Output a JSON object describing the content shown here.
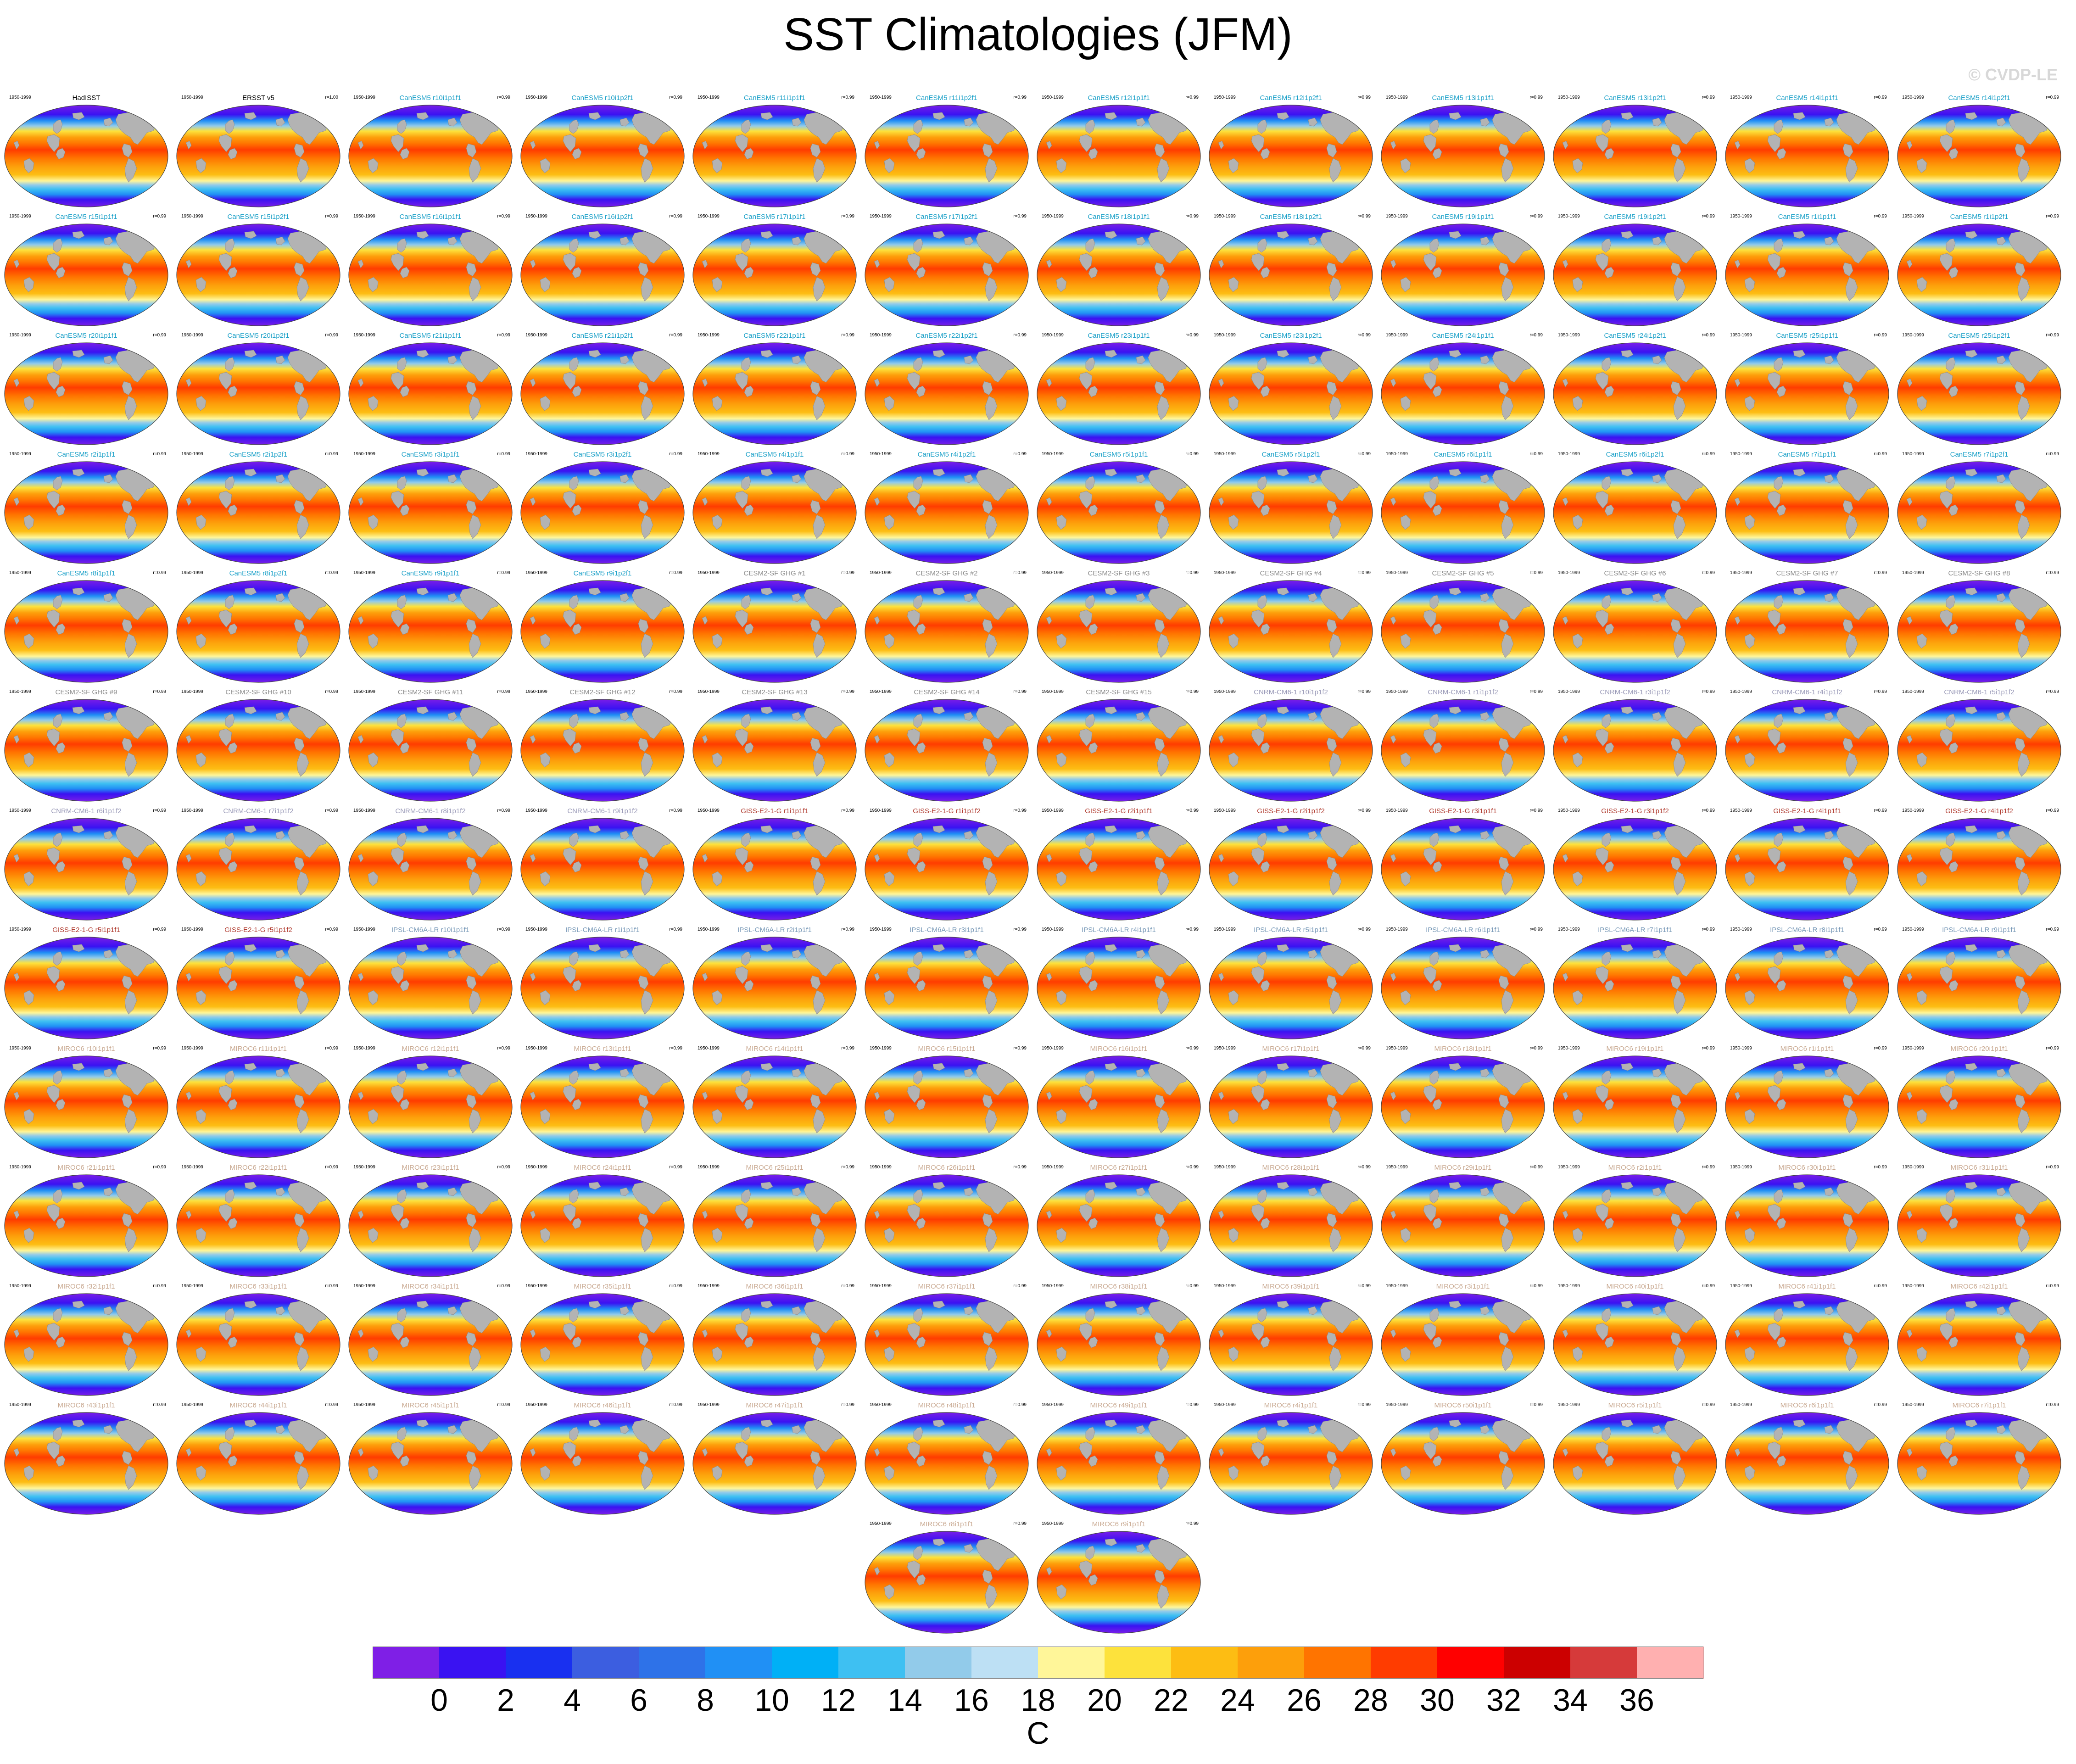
{
  "title": "SST Climatologies (JFM)",
  "copyright": "© CVDP-LE",
  "period_label": "1950-1999",
  "units": "C",
  "chart_data": {
    "type": "heatmap",
    "projection": "global map panels",
    "title": "SST Climatologies (JFM)",
    "panels": [
      {
        "title": "HadISST",
        "r": "",
        "group": "obs"
      },
      {
        "title": "ERSST v5",
        "r": "r=1.00",
        "group": "obs"
      },
      {
        "title": "CanESM5 r10i1p1f1",
        "r": "r=0.99",
        "group": "CanESM5"
      },
      {
        "title": "CanESM5 r10i1p2f1",
        "r": "r=0.99",
        "group": "CanESM5"
      },
      {
        "title": "CanESM5 r11i1p1f1",
        "r": "r=0.99",
        "group": "CanESM5"
      },
      {
        "title": "CanESM5 r11i1p2f1",
        "r": "r=0.99",
        "group": "CanESM5"
      },
      {
        "title": "CanESM5 r12i1p1f1",
        "r": "r=0.99",
        "group": "CanESM5"
      },
      {
        "title": "CanESM5 r12i1p2f1",
        "r": "r=0.99",
        "group": "CanESM5"
      },
      {
        "title": "CanESM5 r13i1p1f1",
        "r": "r=0.99",
        "group": "CanESM5"
      },
      {
        "title": "CanESM5 r13i1p2f1",
        "r": "r=0.99",
        "group": "CanESM5"
      },
      {
        "title": "CanESM5 r14i1p1f1",
        "r": "r=0.99",
        "group": "CanESM5"
      },
      {
        "title": "CanESM5 r14i1p2f1",
        "r": "r=0.99",
        "group": "CanESM5"
      },
      {
        "title": "CanESM5 r15i1p1f1",
        "r": "r=0.99",
        "group": "CanESM5"
      },
      {
        "title": "CanESM5 r15i1p2f1",
        "r": "r=0.99",
        "group": "CanESM5"
      },
      {
        "title": "CanESM5 r16i1p1f1",
        "r": "r=0.99",
        "group": "CanESM5"
      },
      {
        "title": "CanESM5 r16i1p2f1",
        "r": "r=0.99",
        "group": "CanESM5"
      },
      {
        "title": "CanESM5 r17i1p1f1",
        "r": "r=0.99",
        "group": "CanESM5"
      },
      {
        "title": "CanESM5 r17i1p2f1",
        "r": "r=0.99",
        "group": "CanESM5"
      },
      {
        "title": "CanESM5 r18i1p1f1",
        "r": "r=0.99",
        "group": "CanESM5"
      },
      {
        "title": "CanESM5 r18i1p2f1",
        "r": "r=0.99",
        "group": "CanESM5"
      },
      {
        "title": "CanESM5 r19i1p1f1",
        "r": "r=0.99",
        "group": "CanESM5"
      },
      {
        "title": "CanESM5 r19i1p2f1",
        "r": "r=0.99",
        "group": "CanESM5"
      },
      {
        "title": "CanESM5 r1i1p1f1",
        "r": "r=0.99",
        "group": "CanESM5"
      },
      {
        "title": "CanESM5 r1i1p2f1",
        "r": "r=0.99",
        "group": "CanESM5"
      },
      {
        "title": "CanESM5 r20i1p1f1",
        "r": "r=0.99",
        "group": "CanESM5"
      },
      {
        "title": "CanESM5 r20i1p2f1",
        "r": "r=0.99",
        "group": "CanESM5"
      },
      {
        "title": "CanESM5 r21i1p1f1",
        "r": "r=0.99",
        "group": "CanESM5"
      },
      {
        "title": "CanESM5 r21i1p2f1",
        "r": "r=0.99",
        "group": "CanESM5"
      },
      {
        "title": "CanESM5 r22i1p1f1",
        "r": "r=0.99",
        "group": "CanESM5"
      },
      {
        "title": "CanESM5 r22i1p2f1",
        "r": "r=0.99",
        "group": "CanESM5"
      },
      {
        "title": "CanESM5 r23i1p1f1",
        "r": "r=0.99",
        "group": "CanESM5"
      },
      {
        "title": "CanESM5 r23i1p2f1",
        "r": "r=0.99",
        "group": "CanESM5"
      },
      {
        "title": "CanESM5 r24i1p1f1",
        "r": "r=0.99",
        "group": "CanESM5"
      },
      {
        "title": "CanESM5 r24i1p2f1",
        "r": "r=0.99",
        "group": "CanESM5"
      },
      {
        "title": "CanESM5 r25i1p1f1",
        "r": "r=0.99",
        "group": "CanESM5"
      },
      {
        "title": "CanESM5 r25i1p2f1",
        "r": "r=0.99",
        "group": "CanESM5"
      },
      {
        "title": "CanESM5 r2i1p1f1",
        "r": "r=0.99",
        "group": "CanESM5"
      },
      {
        "title": "CanESM5 r2i1p2f1",
        "r": "r=0.99",
        "group": "CanESM5"
      },
      {
        "title": "CanESM5 r3i1p1f1",
        "r": "r=0.99",
        "group": "CanESM5"
      },
      {
        "title": "CanESM5 r3i1p2f1",
        "r": "r=0.99",
        "group": "CanESM5"
      },
      {
        "title": "CanESM5 r4i1p1f1",
        "r": "r=0.99",
        "group": "CanESM5"
      },
      {
        "title": "CanESM5 r4i1p2f1",
        "r": "r=0.99",
        "group": "CanESM5"
      },
      {
        "title": "CanESM5 r5i1p1f1",
        "r": "r=0.99",
        "group": "CanESM5"
      },
      {
        "title": "CanESM5 r5i1p2f1",
        "r": "r=0.99",
        "group": "CanESM5"
      },
      {
        "title": "CanESM5 r6i1p1f1",
        "r": "r=0.99",
        "group": "CanESM5"
      },
      {
        "title": "CanESM5 r6i1p2f1",
        "r": "r=0.99",
        "group": "CanESM5"
      },
      {
        "title": "CanESM5 r7i1p1f1",
        "r": "r=0.99",
        "group": "CanESM5"
      },
      {
        "title": "CanESM5 r7i1p2f1",
        "r": "r=0.99",
        "group": "CanESM5"
      },
      {
        "title": "CanESM5 r8i1p1f1",
        "r": "r=0.99",
        "group": "CanESM5"
      },
      {
        "title": "CanESM5 r8i1p2f1",
        "r": "r=0.99",
        "group": "CanESM5"
      },
      {
        "title": "CanESM5 r9i1p1f1",
        "r": "r=0.99",
        "group": "CanESM5"
      },
      {
        "title": "CanESM5 r9i1p2f1",
        "r": "r=0.99",
        "group": "CanESM5"
      },
      {
        "title": "CESM2-SF GHG #1",
        "r": "r=0.99",
        "group": "CESM2"
      },
      {
        "title": "CESM2-SF GHG #2",
        "r": "r=0.99",
        "group": "CESM2"
      },
      {
        "title": "CESM2-SF GHG #3",
        "r": "r=0.99",
        "group": "CESM2"
      },
      {
        "title": "CESM2-SF GHG #4",
        "r": "r=0.99",
        "group": "CESM2"
      },
      {
        "title": "CESM2-SF GHG #5",
        "r": "r=0.99",
        "group": "CESM2"
      },
      {
        "title": "CESM2-SF GHG #6",
        "r": "r=0.99",
        "group": "CESM2"
      },
      {
        "title": "CESM2-SF GHG #7",
        "r": "r=0.99",
        "group": "CESM2"
      },
      {
        "title": "CESM2-SF GHG #8",
        "r": "r=0.99",
        "group": "CESM2"
      },
      {
        "title": "CESM2-SF GHG #9",
        "r": "r=0.99",
        "group": "CESM2"
      },
      {
        "title": "CESM2-SF GHG #10",
        "r": "r=0.99",
        "group": "CESM2"
      },
      {
        "title": "CESM2-SF GHG #11",
        "r": "r=0.99",
        "group": "CESM2"
      },
      {
        "title": "CESM2-SF GHG #12",
        "r": "r=0.99",
        "group": "CESM2"
      },
      {
        "title": "CESM2-SF GHG #13",
        "r": "r=0.99",
        "group": "CESM2"
      },
      {
        "title": "CESM2-SF GHG #14",
        "r": "r=0.99",
        "group": "CESM2"
      },
      {
        "title": "CESM2-SF GHG #15",
        "r": "r=0.99",
        "group": "CESM2"
      },
      {
        "title": "CNRM-CM6-1 r10i1p1f2",
        "r": "r=0.99",
        "group": "CNRM"
      },
      {
        "title": "CNRM-CM6-1 r1i1p1f2",
        "r": "r=0.99",
        "group": "CNRM"
      },
      {
        "title": "CNRM-CM6-1 r3i1p1f2",
        "r": "r=0.99",
        "group": "CNRM"
      },
      {
        "title": "CNRM-CM6-1 r4i1p1f2",
        "r": "r=0.99",
        "group": "CNRM"
      },
      {
        "title": "CNRM-CM6-1 r5i1p1f2",
        "r": "r=0.99",
        "group": "CNRM"
      },
      {
        "title": "CNRM-CM6-1 r6i1p1f2",
        "r": "r=0.99",
        "group": "CNRM"
      },
      {
        "title": "CNRM-CM6-1 r7i1p1f2",
        "r": "r=0.99",
        "group": "CNRM"
      },
      {
        "title": "CNRM-CM6-1 r8i1p1f2",
        "r": "r=0.99",
        "group": "CNRM"
      },
      {
        "title": "CNRM-CM6-1 r9i1p1f2",
        "r": "r=0.99",
        "group": "CNRM"
      },
      {
        "title": "GISS-E2-1-G r1i1p1f1",
        "r": "r=0.99",
        "group": "GISS"
      },
      {
        "title": "GISS-E2-1-G r1i1p1f2",
        "r": "r=0.99",
        "group": "GISS"
      },
      {
        "title": "GISS-E2-1-G r2i1p1f1",
        "r": "r=0.99",
        "group": "GISS"
      },
      {
        "title": "GISS-E2-1-G r2i1p1f2",
        "r": "r=0.99",
        "group": "GISS"
      },
      {
        "title": "GISS-E2-1-G r3i1p1f1",
        "r": "r=0.99",
        "group": "GISS"
      },
      {
        "title": "GISS-E2-1-G r3i1p1f2",
        "r": "r=0.99",
        "group": "GISS"
      },
      {
        "title": "GISS-E2-1-G r4i1p1f1",
        "r": "r=0.99",
        "group": "GISS"
      },
      {
        "title": "GISS-E2-1-G r4i1p1f2",
        "r": "r=0.99",
        "group": "GISS"
      },
      {
        "title": "GISS-E2-1-G r5i1p1f1",
        "r": "r=0.99",
        "group": "GISS"
      },
      {
        "title": "GISS-E2-1-G r5i1p1f2",
        "r": "r=0.99",
        "group": "GISS"
      },
      {
        "title": "IPSL-CM6A-LR r10i1p1f1",
        "r": "r=0.99",
        "group": "IPSL"
      },
      {
        "title": "IPSL-CM6A-LR r1i1p1f1",
        "r": "r=0.99",
        "group": "IPSL"
      },
      {
        "title": "IPSL-CM6A-LR r2i1p1f1",
        "r": "r=0.99",
        "group": "IPSL"
      },
      {
        "title": "IPSL-CM6A-LR r3i1p1f1",
        "r": "r=0.99",
        "group": "IPSL"
      },
      {
        "title": "IPSL-CM6A-LR r4i1p1f1",
        "r": "r=0.99",
        "group": "IPSL"
      },
      {
        "title": "IPSL-CM6A-LR r5i1p1f1",
        "r": "r=0.99",
        "group": "IPSL"
      },
      {
        "title": "IPSL-CM6A-LR r6i1p1f1",
        "r": "r=0.99",
        "group": "IPSL"
      },
      {
        "title": "IPSL-CM6A-LR r7i1p1f1",
        "r": "r=0.99",
        "group": "IPSL"
      },
      {
        "title": "IPSL-CM6A-LR r8i1p1f1",
        "r": "r=0.99",
        "group": "IPSL"
      },
      {
        "title": "IPSL-CM6A-LR r9i1p1f1",
        "r": "r=0.99",
        "group": "IPSL"
      },
      {
        "title": "MIROC6 r10i1p1f1",
        "r": "r=0.99",
        "group": "MIROC6"
      },
      {
        "title": "MIROC6 r11i1p1f1",
        "r": "r=0.99",
        "group": "MIROC6"
      },
      {
        "title": "MIROC6 r12i1p1f1",
        "r": "r=0.99",
        "group": "MIROC6"
      },
      {
        "title": "MIROC6 r13i1p1f1",
        "r": "r=0.99",
        "group": "MIROC6"
      },
      {
        "title": "MIROC6 r14i1p1f1",
        "r": "r=0.99",
        "group": "MIROC6"
      },
      {
        "title": "MIROC6 r15i1p1f1",
        "r": "r=0.99",
        "group": "MIROC6"
      },
      {
        "title": "MIROC6 r16i1p1f1",
        "r": "r=0.99",
        "group": "MIROC6"
      },
      {
        "title": "MIROC6 r17i1p1f1",
        "r": "r=0.99",
        "group": "MIROC6"
      },
      {
        "title": "MIROC6 r18i1p1f1",
        "r": "r=0.99",
        "group": "MIROC6"
      },
      {
        "title": "MIROC6 r19i1p1f1",
        "r": "r=0.99",
        "group": "MIROC6"
      },
      {
        "title": "MIROC6 r1i1p1f1",
        "r": "r=0.99",
        "group": "MIROC6"
      },
      {
        "title": "MIROC6 r20i1p1f1",
        "r": "r=0.99",
        "group": "MIROC6"
      },
      {
        "title": "MIROC6 r21i1p1f1",
        "r": "r=0.99",
        "group": "MIROC6"
      },
      {
        "title": "MIROC6 r22i1p1f1",
        "r": "r=0.99",
        "group": "MIROC6"
      },
      {
        "title": "MIROC6 r23i1p1f1",
        "r": "r=0.99",
        "group": "MIROC6"
      },
      {
        "title": "MIROC6 r24i1p1f1",
        "r": "r=0.99",
        "group": "MIROC6"
      },
      {
        "title": "MIROC6 r25i1p1f1",
        "r": "r=0.99",
        "group": "MIROC6"
      },
      {
        "title": "MIROC6 r26i1p1f1",
        "r": "r=0.99",
        "group": "MIROC6"
      },
      {
        "title": "MIROC6 r27i1p1f1",
        "r": "r=0.99",
        "group": "MIROC6"
      },
      {
        "title": "MIROC6 r28i1p1f1",
        "r": "r=0.99",
        "group": "MIROC6"
      },
      {
        "title": "MIROC6 r29i1p1f1",
        "r": "r=0.99",
        "group": "MIROC6"
      },
      {
        "title": "MIROC6 r2i1p1f1",
        "r": "r=0.99",
        "group": "MIROC6"
      },
      {
        "title": "MIROC6 r30i1p1f1",
        "r": "r=0.99",
        "group": "MIROC6"
      },
      {
        "title": "MIROC6 r31i1p1f1",
        "r": "r=0.99",
        "group": "MIROC6"
      },
      {
        "title": "MIROC6 r32i1p1f1",
        "r": "r=0.99",
        "group": "MIROC6"
      },
      {
        "title": "MIROC6 r33i1p1f1",
        "r": "r=0.99",
        "group": "MIROC6"
      },
      {
        "title": "MIROC6 r34i1p1f1",
        "r": "r=0.99",
        "group": "MIROC6"
      },
      {
        "title": "MIROC6 r35i1p1f1",
        "r": "r=0.99",
        "group": "MIROC6"
      },
      {
        "title": "MIROC6 r36i1p1f1",
        "r": "r=0.99",
        "group": "MIROC6"
      },
      {
        "title": "MIROC6 r37i1p1f1",
        "r": "r=0.99",
        "group": "MIROC6"
      },
      {
        "title": "MIROC6 r38i1p1f1",
        "r": "r=0.99",
        "group": "MIROC6"
      },
      {
        "title": "MIROC6 r39i1p1f1",
        "r": "r=0.99",
        "group": "MIROC6"
      },
      {
        "title": "MIROC6 r3i1p1f1",
        "r": "r=0.99",
        "group": "MIROC6"
      },
      {
        "title": "MIROC6 r40i1p1f1",
        "r": "r=0.99",
        "group": "MIROC6"
      },
      {
        "title": "MIROC6 r41i1p1f1",
        "r": "r=0.99",
        "group": "MIROC6"
      },
      {
        "title": "MIROC6 r42i1p1f1",
        "r": "r=0.99",
        "group": "MIROC6"
      },
      {
        "title": "MIROC6 r43i1p1f1",
        "r": "r=0.99",
        "group": "MIROC6"
      },
      {
        "title": "MIROC6 r44i1p1f1",
        "r": "r=0.99",
        "group": "MIROC6"
      },
      {
        "title": "MIROC6 r45i1p1f1",
        "r": "r=0.99",
        "group": "MIROC6"
      },
      {
        "title": "MIROC6 r46i1p1f1",
        "r": "r=0.99",
        "group": "MIROC6"
      },
      {
        "title": "MIROC6 r47i1p1f1",
        "r": "r=0.99",
        "group": "MIROC6"
      },
      {
        "title": "MIROC6 r48i1p1f1",
        "r": "r=0.99",
        "group": "MIROC6"
      },
      {
        "title": "MIROC6 r49i1p1f1",
        "r": "r=0.99",
        "group": "MIROC6"
      },
      {
        "title": "MIROC6 r4i1p1f1",
        "r": "r=0.99",
        "group": "MIROC6"
      },
      {
        "title": "MIROC6 r50i1p1f1",
        "r": "r=0.99",
        "group": "MIROC6"
      },
      {
        "title": "MIROC6 r5i1p1f1",
        "r": "r=0.99",
        "group": "MIROC6"
      },
      {
        "title": "MIROC6 r6i1p1f1",
        "r": "r=0.99",
        "group": "MIROC6"
      },
      {
        "title": "MIROC6 r7i1p1f1",
        "r": "r=0.99",
        "group": "MIROC6"
      },
      {
        "title": "MIROC6 r8i1p1f1",
        "r": "r=0.99",
        "group": "MIROC6"
      },
      {
        "title": "MIROC6 r9i1p1f1",
        "r": "r=0.99",
        "group": "MIROC6"
      }
    ],
    "colorbar": {
      "label": "C",
      "ticks": [
        0,
        2,
        4,
        6,
        8,
        10,
        12,
        14,
        16,
        18,
        20,
        22,
        24,
        26,
        28,
        30,
        32,
        34,
        36
      ],
      "colors": [
        "#7f1fe6",
        "#3a12f2",
        "#1930f0",
        "#3c5ee0",
        "#2e72e8",
        "#2090f5",
        "#00b0f6",
        "#3ec0f2",
        "#92cbea",
        "#bde0f4",
        "#fff699",
        "#fde23c",
        "#fdbd13",
        "#fd9f0b",
        "#ff7400",
        "#ff3c00",
        "#ff0000",
        "#cc0000",
        "#d63a3a",
        "#ffb0b0"
      ]
    }
  },
  "colors": {
    "obs_title": "#000000",
    "CanESM5": "#1aa0c8",
    "CESM2": "#8a8a8a",
    "CNRM": "#9a9ab8",
    "GISS": "#b03a2e",
    "IPSL": "#7a9ab8",
    "MIROC6": "#c8a890",
    "land": "#b3b3b3",
    "copyright": "#d8d8d8"
  }
}
